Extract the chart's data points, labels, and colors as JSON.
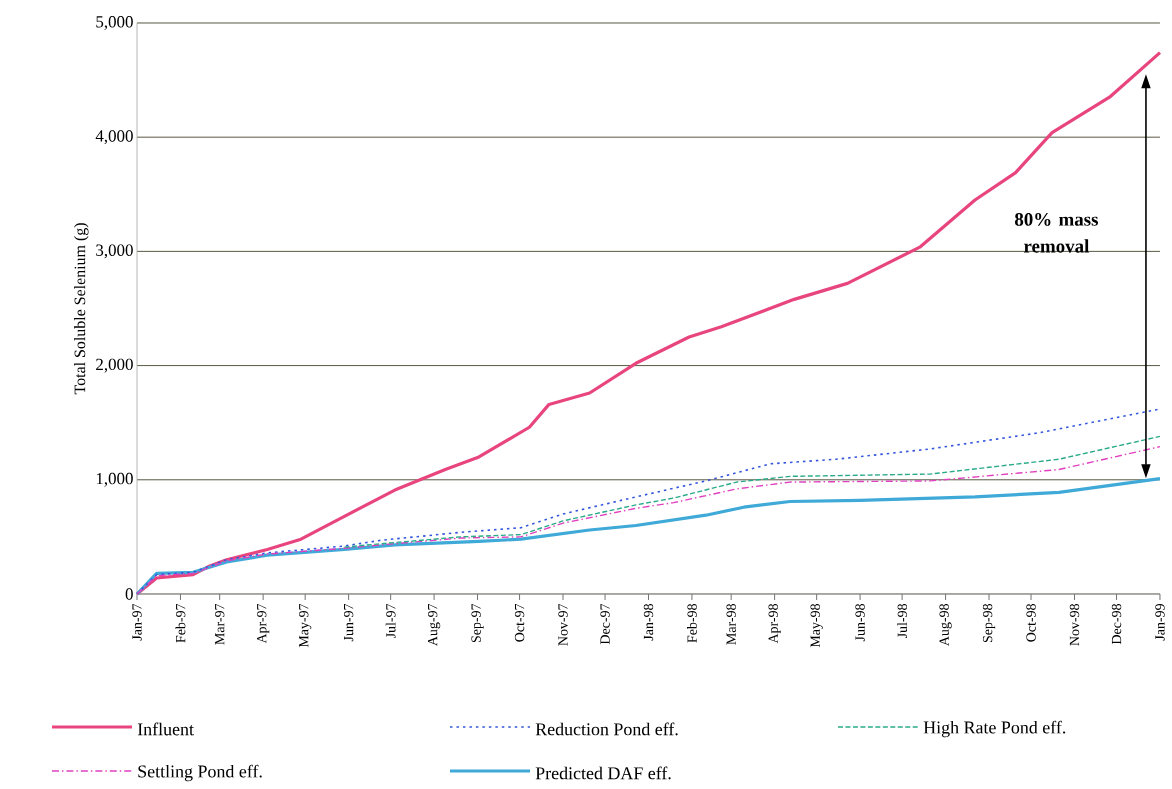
{
  "chart_data": {
    "type": "line",
    "ylabel": "Total Soluble Selenium (g)",
    "xlim": [
      "1997-01",
      "1999-01"
    ],
    "xticks": [
      {
        "value": "1997-01",
        "label": "Jan-97"
      },
      {
        "value": "1997-02",
        "label": "Feb-97"
      },
      {
        "value": "1997-03",
        "label": "Mar-97"
      },
      {
        "value": "1997-04",
        "label": "Apr-97"
      },
      {
        "value": "1997-05",
        "label": "May-97"
      },
      {
        "value": "1997-06",
        "label": "Jun-97"
      },
      {
        "value": "1997-07",
        "label": "Jul-97"
      },
      {
        "value": "1997-08",
        "label": "Aug-97"
      },
      {
        "value": "1997-09",
        "label": "Sep-97"
      },
      {
        "value": "1997-10",
        "label": "Oct-97"
      },
      {
        "value": "1997-11",
        "label": "Nov-97"
      },
      {
        "value": "1997-12",
        "label": "Dec-97"
      },
      {
        "value": "1998-01",
        "label": "Jan-98"
      },
      {
        "value": "1998-02",
        "label": "Feb-98"
      },
      {
        "value": "1998-03",
        "label": "Mar-98"
      },
      {
        "value": "1998-04",
        "label": "Apr-98"
      },
      {
        "value": "1998-05",
        "label": "May-98"
      },
      {
        "value": "1998-06",
        "label": "Jun-98"
      },
      {
        "value": "1998-07",
        "label": "Jul-98"
      },
      {
        "value": "1998-08",
        "label": "Aug-98"
      },
      {
        "value": "1998-09",
        "label": "Sep-98"
      },
      {
        "value": "1998-10",
        "label": "Oct-98"
      },
      {
        "value": "1998-11",
        "label": "Nov-98"
      },
      {
        "value": "1998-12",
        "label": "Dec-98"
      },
      {
        "value": "1999-01",
        "label": "Jan-99"
      }
    ],
    "ylim": [
      0,
      5000
    ],
    "yticks": [
      0,
      {
        "value": 1000,
        "label": "1,000"
      },
      {
        "value": 2000,
        "label": "2,000"
      },
      {
        "value": 3000,
        "label": "3,000"
      },
      {
        "value": 4000,
        "label": "4,000"
      },
      {
        "value": 5000,
        "label": "5,000"
      }
    ],
    "grid": "y",
    "legend": "bottom",
    "marker": "none",
    "series": [
      {
        "name": "Influent",
        "color": "#e8457e",
        "line_style": "solid",
        "x": [
          "1997-01-01",
          "1997-01-15",
          "1997-02-10",
          "1997-02-21",
          "1997-03-06",
          "1997-04-04",
          "1997-04-28",
          "1997-05-29",
          "1997-07-04",
          "1997-08-09",
          "1997-09-02",
          "1997-10-08",
          "1997-10-22",
          "1997-11-20",
          "1997-12-23",
          "1998-01-30",
          "1998-02-22",
          "1998-04-15",
          "1998-05-23",
          "1998-07-14",
          "1998-08-22",
          "1998-09-20",
          "1998-10-16",
          "1998-11-26",
          "1999-01-01"
        ],
        "values": [
          0,
          140,
          170,
          240,
          300,
          390,
          480,
          680,
          910,
          1090,
          1200,
          1460,
          1660,
          1760,
          2020,
          2250,
          2340,
          2580,
          2720,
          3040,
          3450,
          3690,
          4040,
          4350,
          4740
        ]
      },
      {
        "name": "Reduction Pond eff.",
        "color": "#3355dd",
        "line_style": "dotted",
        "x": [
          "1997-01-01",
          "1997-01-15",
          "1997-02-10",
          "1997-03-06",
          "1997-04-04",
          "1997-05-29",
          "1997-06-24",
          "1997-08-20",
          "1997-10-02",
          "1997-11-01",
          "1997-12-23",
          "1998-02-11",
          "1998-03-29",
          "1998-05-15",
          "1998-07-21",
          "1998-10-06",
          "1999-01-01"
        ],
        "values": [
          0,
          170,
          190,
          300,
          360,
          420,
          470,
          540,
          580,
          700,
          850,
          990,
          1140,
          1180,
          1270,
          1410,
          1620
        ]
      },
      {
        "name": "High Rate Pond eff.",
        "color": "#2aaa88",
        "line_style": "dashed",
        "x": [
          "1997-05-29",
          "1997-06-24",
          "1997-08-20",
          "1997-10-02",
          "1997-11-01",
          "1997-12-23",
          "1998-01-19",
          "1998-03-05",
          "1998-04-12",
          "1998-07-21",
          "1998-10-21",
          "1999-01-01"
        ],
        "values": [
          410,
          440,
          500,
          520,
          640,
          780,
          840,
          980,
          1030,
          1050,
          1180,
          1380
        ]
      },
      {
        "name": "Settling Pond eff.",
        "color": "#e040c0",
        "line_style": "dashdot",
        "x": [
          "1997-01-01",
          "1997-01-15",
          "1997-02-10",
          "1997-03-06",
          "1997-04-04",
          "1997-05-29",
          "1997-06-24",
          "1997-08-20",
          "1997-10-02",
          "1997-11-01",
          "1997-12-23",
          "1998-01-19",
          "1998-03-05",
          "1998-04-12",
          "1998-07-21",
          "1998-10-21",
          "1999-01-01"
        ],
        "values": [
          0,
          160,
          180,
          290,
          350,
          400,
          430,
          490,
          500,
          620,
          750,
          800,
          920,
          980,
          990,
          1090,
          1290
        ]
      },
      {
        "name": "Predicted DAF eff.",
        "color": "#3fa9d8",
        "line_style": "solid",
        "x": [
          "1997-01-01",
          "1997-01-15",
          "1997-02-10",
          "1997-03-06",
          "1997-04-04",
          "1997-05-29",
          "1997-07-04",
          "1997-09-02",
          "1997-10-02",
          "1997-11-20",
          "1997-12-23",
          "1998-02-11",
          "1998-03-10",
          "1998-04-12",
          "1998-06-01",
          "1998-08-22",
          "1998-10-21",
          "1999-01-01"
        ],
        "values": [
          0,
          180,
          190,
          280,
          340,
          390,
          430,
          460,
          480,
          560,
          600,
          690,
          760,
          810,
          820,
          850,
          890,
          1010
        ]
      }
    ],
    "annotations": [
      "80% mass removal"
    ]
  }
}
